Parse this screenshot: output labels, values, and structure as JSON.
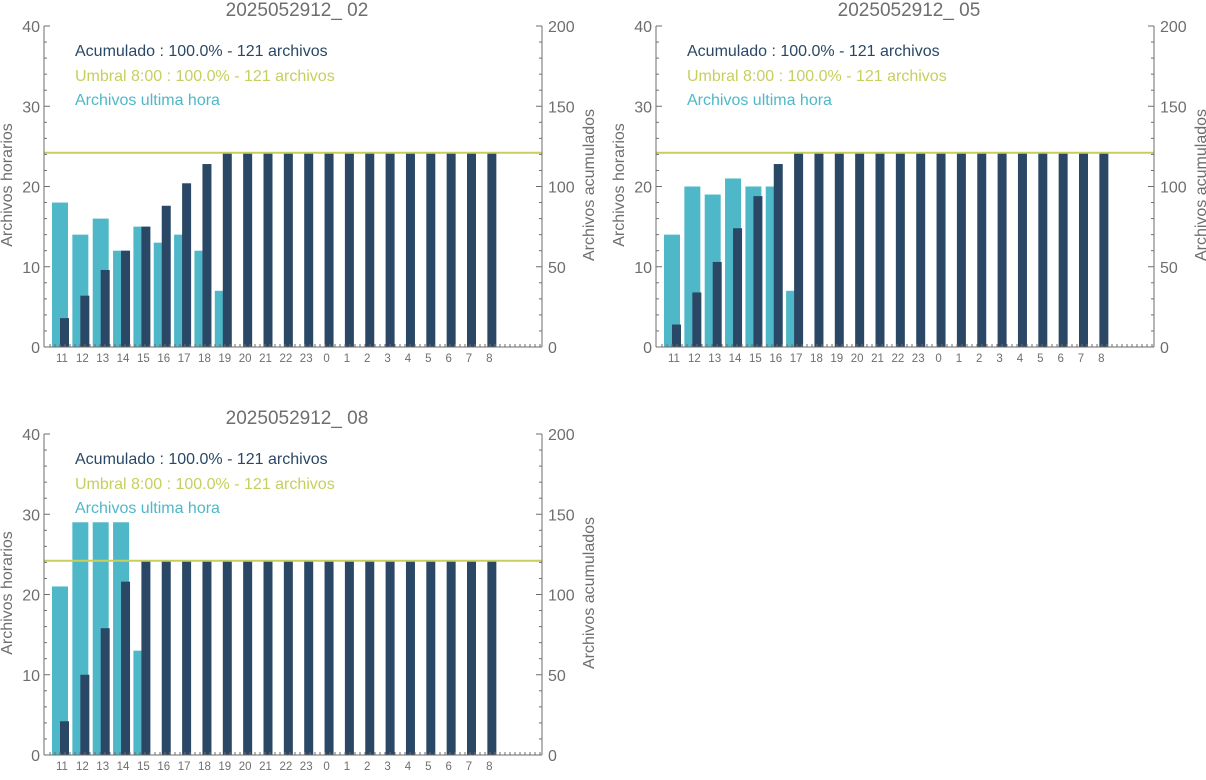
{
  "colors": {
    "hourly": "#4fb8c8",
    "accumulated": "#2a4866",
    "threshold": "#c6cf5e",
    "axis": "#6e6e6e"
  },
  "chart_data": [
    {
      "type": "bar",
      "title": "2025052912_ 02",
      "ylabel": "Archivos horarios",
      "y2label": "Archivos acumulados",
      "ylim": [
        0,
        40
      ],
      "y2lim": [
        0,
        200
      ],
      "yticks": [
        "0",
        "10",
        "20",
        "30",
        "40"
      ],
      "y2ticks": [
        "0",
        "50",
        "100",
        "150",
        "200"
      ],
      "categories": [
        "11",
        "12",
        "13",
        "14",
        "15",
        "16",
        "17",
        "18",
        "19",
        "20",
        "21",
        "22",
        "23",
        "0",
        "1",
        "2",
        "3",
        "4",
        "5",
        "6",
        "7",
        "8"
      ],
      "legend": [
        "Acumulado : 100.0% - 121 archivos",
        "Umbral 8:00 : 100.0% - 121 archivos",
        "Archivos ultima hora"
      ],
      "threshold": 121,
      "series": [
        {
          "name": "Archivos ultima hora",
          "axis": "left",
          "values": [
            18,
            14,
            16,
            12,
            15,
            13,
            14,
            12,
            7,
            0,
            0,
            0,
            0,
            0,
            0,
            0,
            0,
            0,
            0,
            0,
            0,
            0
          ]
        },
        {
          "name": "Acumulado",
          "axis": "right",
          "values": [
            18,
            32,
            48,
            60,
            75,
            88,
            102,
            114,
            121,
            121,
            121,
            121,
            121,
            121,
            121,
            121,
            121,
            121,
            121,
            121,
            121,
            121
          ]
        }
      ]
    },
    {
      "type": "bar",
      "title": "2025052912_ 05",
      "ylabel": "Archivos horarios",
      "y2label": "Archivos acumulados",
      "ylim": [
        0,
        40
      ],
      "y2lim": [
        0,
        200
      ],
      "yticks": [
        "0",
        "10",
        "20",
        "30",
        "40"
      ],
      "y2ticks": [
        "0",
        "50",
        "100",
        "150",
        "200"
      ],
      "categories": [
        "11",
        "12",
        "13",
        "14",
        "15",
        "16",
        "17",
        "18",
        "19",
        "20",
        "21",
        "22",
        "23",
        "0",
        "1",
        "2",
        "3",
        "4",
        "5",
        "6",
        "7",
        "8"
      ],
      "legend": [
        "Acumulado : 100.0% - 121 archivos",
        "Umbral 8:00 : 100.0% - 121 archivos",
        "Archivos ultima hora"
      ],
      "threshold": 121,
      "series": [
        {
          "name": "Archivos ultima hora",
          "axis": "left",
          "values": [
            14,
            20,
            19,
            21,
            20,
            20,
            7,
            0,
            0,
            0,
            0,
            0,
            0,
            0,
            0,
            0,
            0,
            0,
            0,
            0,
            0,
            0
          ]
        },
        {
          "name": "Acumulado",
          "axis": "right",
          "values": [
            14,
            34,
            53,
            74,
            94,
            114,
            121,
            121,
            121,
            121,
            121,
            121,
            121,
            121,
            121,
            121,
            121,
            121,
            121,
            121,
            121,
            121
          ]
        }
      ]
    },
    {
      "type": "bar",
      "title": "2025052912_ 08",
      "ylabel": "Archivos horarios",
      "y2label": "Archivos acumulados",
      "ylim": [
        0,
        40
      ],
      "y2lim": [
        0,
        200
      ],
      "yticks": [
        "0",
        "10",
        "20",
        "30",
        "40"
      ],
      "y2ticks": [
        "0",
        "50",
        "100",
        "150",
        "200"
      ],
      "categories": [
        "11",
        "12",
        "13",
        "14",
        "15",
        "16",
        "17",
        "18",
        "19",
        "20",
        "21",
        "22",
        "23",
        "0",
        "1",
        "2",
        "3",
        "4",
        "5",
        "6",
        "7",
        "8"
      ],
      "legend": [
        "Acumulado : 100.0% - 121 archivos",
        "Umbral 8:00 : 100.0% - 121 archivos",
        "Archivos ultima hora"
      ],
      "threshold": 121,
      "series": [
        {
          "name": "Archivos ultima hora",
          "axis": "left",
          "values": [
            21,
            29,
            29,
            29,
            13,
            0,
            0,
            0,
            0,
            0,
            0,
            0,
            0,
            0,
            0,
            0,
            0,
            0,
            0,
            0,
            0,
            0
          ]
        },
        {
          "name": "Acumulado",
          "axis": "right",
          "values": [
            21,
            50,
            79,
            108,
            121,
            121,
            121,
            121,
            121,
            121,
            121,
            121,
            121,
            121,
            121,
            121,
            121,
            121,
            121,
            121,
            121,
            121
          ]
        }
      ]
    }
  ]
}
